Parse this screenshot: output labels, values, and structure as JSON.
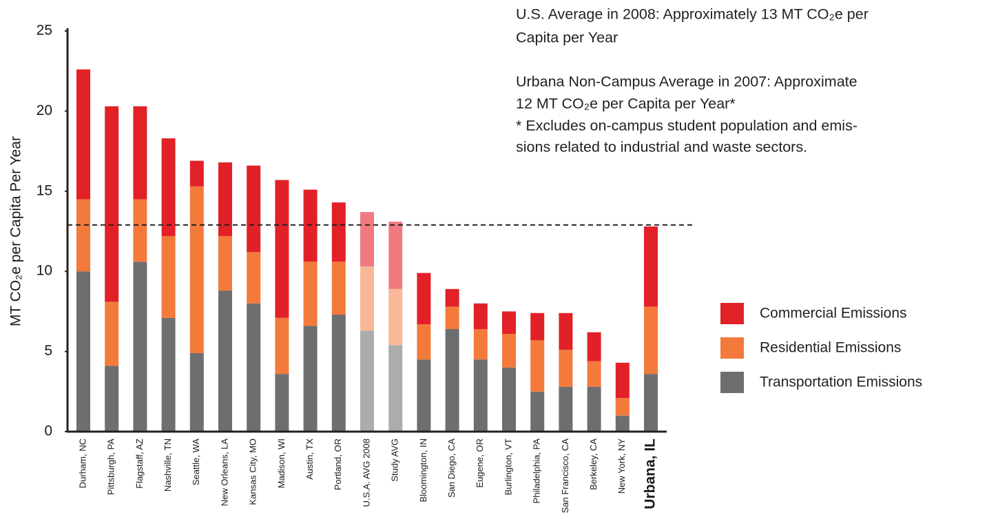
{
  "chart_data": {
    "type": "stacked_bar",
    "y_label": "MT CO₂e per Capita Per Year",
    "categories": [
      "Durham, NC",
      "Pittsburgh, PA",
      "Flagstaff, AZ",
      "Nashville, TN",
      "Seattle, WA",
      "New Orleans, LA",
      "Kansas City, MO",
      "Madison, WI",
      "Austin, TX",
      "Portland, OR",
      "U.S.A. AVG 2008",
      "Study AVG",
      "Bloomington, IN",
      "San Diego, CA",
      "Eugene, OR",
      "Burlington, VT",
      "Philadelphia, PA",
      "San Francisco, CA",
      "Berkeley, CA",
      "New York, NY",
      "Urbana, IL"
    ],
    "bold_categories": [
      20
    ],
    "series": [
      {
        "name": "Transportation Emissions",
        "color": "#6d6e70",
        "colors": [
          "#6d6e70",
          "#6d6e70",
          "#6d6e70",
          "#6d6e70",
          "#6d6e70",
          "#6d6e70",
          "#6d6e70",
          "#6d6e70",
          "#6d6e70",
          "#6d6e70",
          "#acacac",
          "#acacac",
          "#6d6e70",
          "#6d6e70",
          "#6d6e70",
          "#6d6e70",
          "#6d6e70",
          "#6d6e70",
          "#6d6e70",
          "#6d6e70",
          "#6d6e70"
        ],
        "values": [
          10.0,
          4.1,
          10.6,
          7.1,
          4.9,
          8.8,
          8.0,
          3.6,
          6.6,
          7.3,
          6.3,
          5.4,
          4.5,
          6.4,
          4.5,
          4.0,
          2.5,
          2.8,
          2.8,
          1.0,
          3.6
        ]
      },
      {
        "name": "Residential Emissions",
        "color": "#f37a3b",
        "colors": [
          "#f37a3b",
          "#f37a3b",
          "#f37a3b",
          "#f37a3b",
          "#f37a3b",
          "#f37a3b",
          "#f37a3b",
          "#f37a3b",
          "#f37a3b",
          "#f37a3b",
          "#f8b897",
          "#f8b897",
          "#f37a3b",
          "#f37a3b",
          "#f37a3b",
          "#f37a3b",
          "#f37a3b",
          "#f37a3b",
          "#f37a3b",
          "#f37a3b",
          "#f37a3b"
        ],
        "values": [
          4.5,
          4.0,
          3.9,
          5.1,
          10.4,
          3.4,
          3.2,
          3.5,
          4.0,
          3.3,
          4.0,
          3.5,
          2.2,
          1.4,
          1.9,
          2.1,
          3.2,
          2.3,
          1.6,
          1.1,
          4.2
        ]
      },
      {
        "name": "Commercial Emissions",
        "color": "#e12127",
        "colors": [
          "#e12127",
          "#e12127",
          "#e12127",
          "#e12127",
          "#e12127",
          "#e12127",
          "#e12127",
          "#e12127",
          "#e12127",
          "#e12127",
          "#ef7b80",
          "#ef7b80",
          "#e12127",
          "#e12127",
          "#e12127",
          "#e12127",
          "#e12127",
          "#e12127",
          "#e12127",
          "#e12127",
          "#e12127"
        ],
        "values": [
          8.1,
          12.2,
          5.8,
          6.1,
          1.6,
          4.6,
          5.4,
          8.6,
          4.5,
          3.7,
          3.4,
          4.2,
          3.2,
          1.1,
          1.6,
          1.4,
          1.7,
          2.3,
          1.8,
          2.2,
          5.0
        ]
      }
    ],
    "ylim": [
      0,
      25
    ],
    "yticks": [
      0,
      5,
      10,
      15,
      20,
      25
    ],
    "reference_line": 12.9,
    "annotations": [
      "U.S. Average in 2008: Approximately 13 MT CO₂e per",
      "Capita per Year",
      "Urbana Non-Campus Average in 2007: Approximate",
      "12 MT CO₂e per Capita per Year*",
      "* Excludes on-campus student population and emis-",
      "sions related to industrial and waste sectors."
    ],
    "legend_position": "right"
  }
}
